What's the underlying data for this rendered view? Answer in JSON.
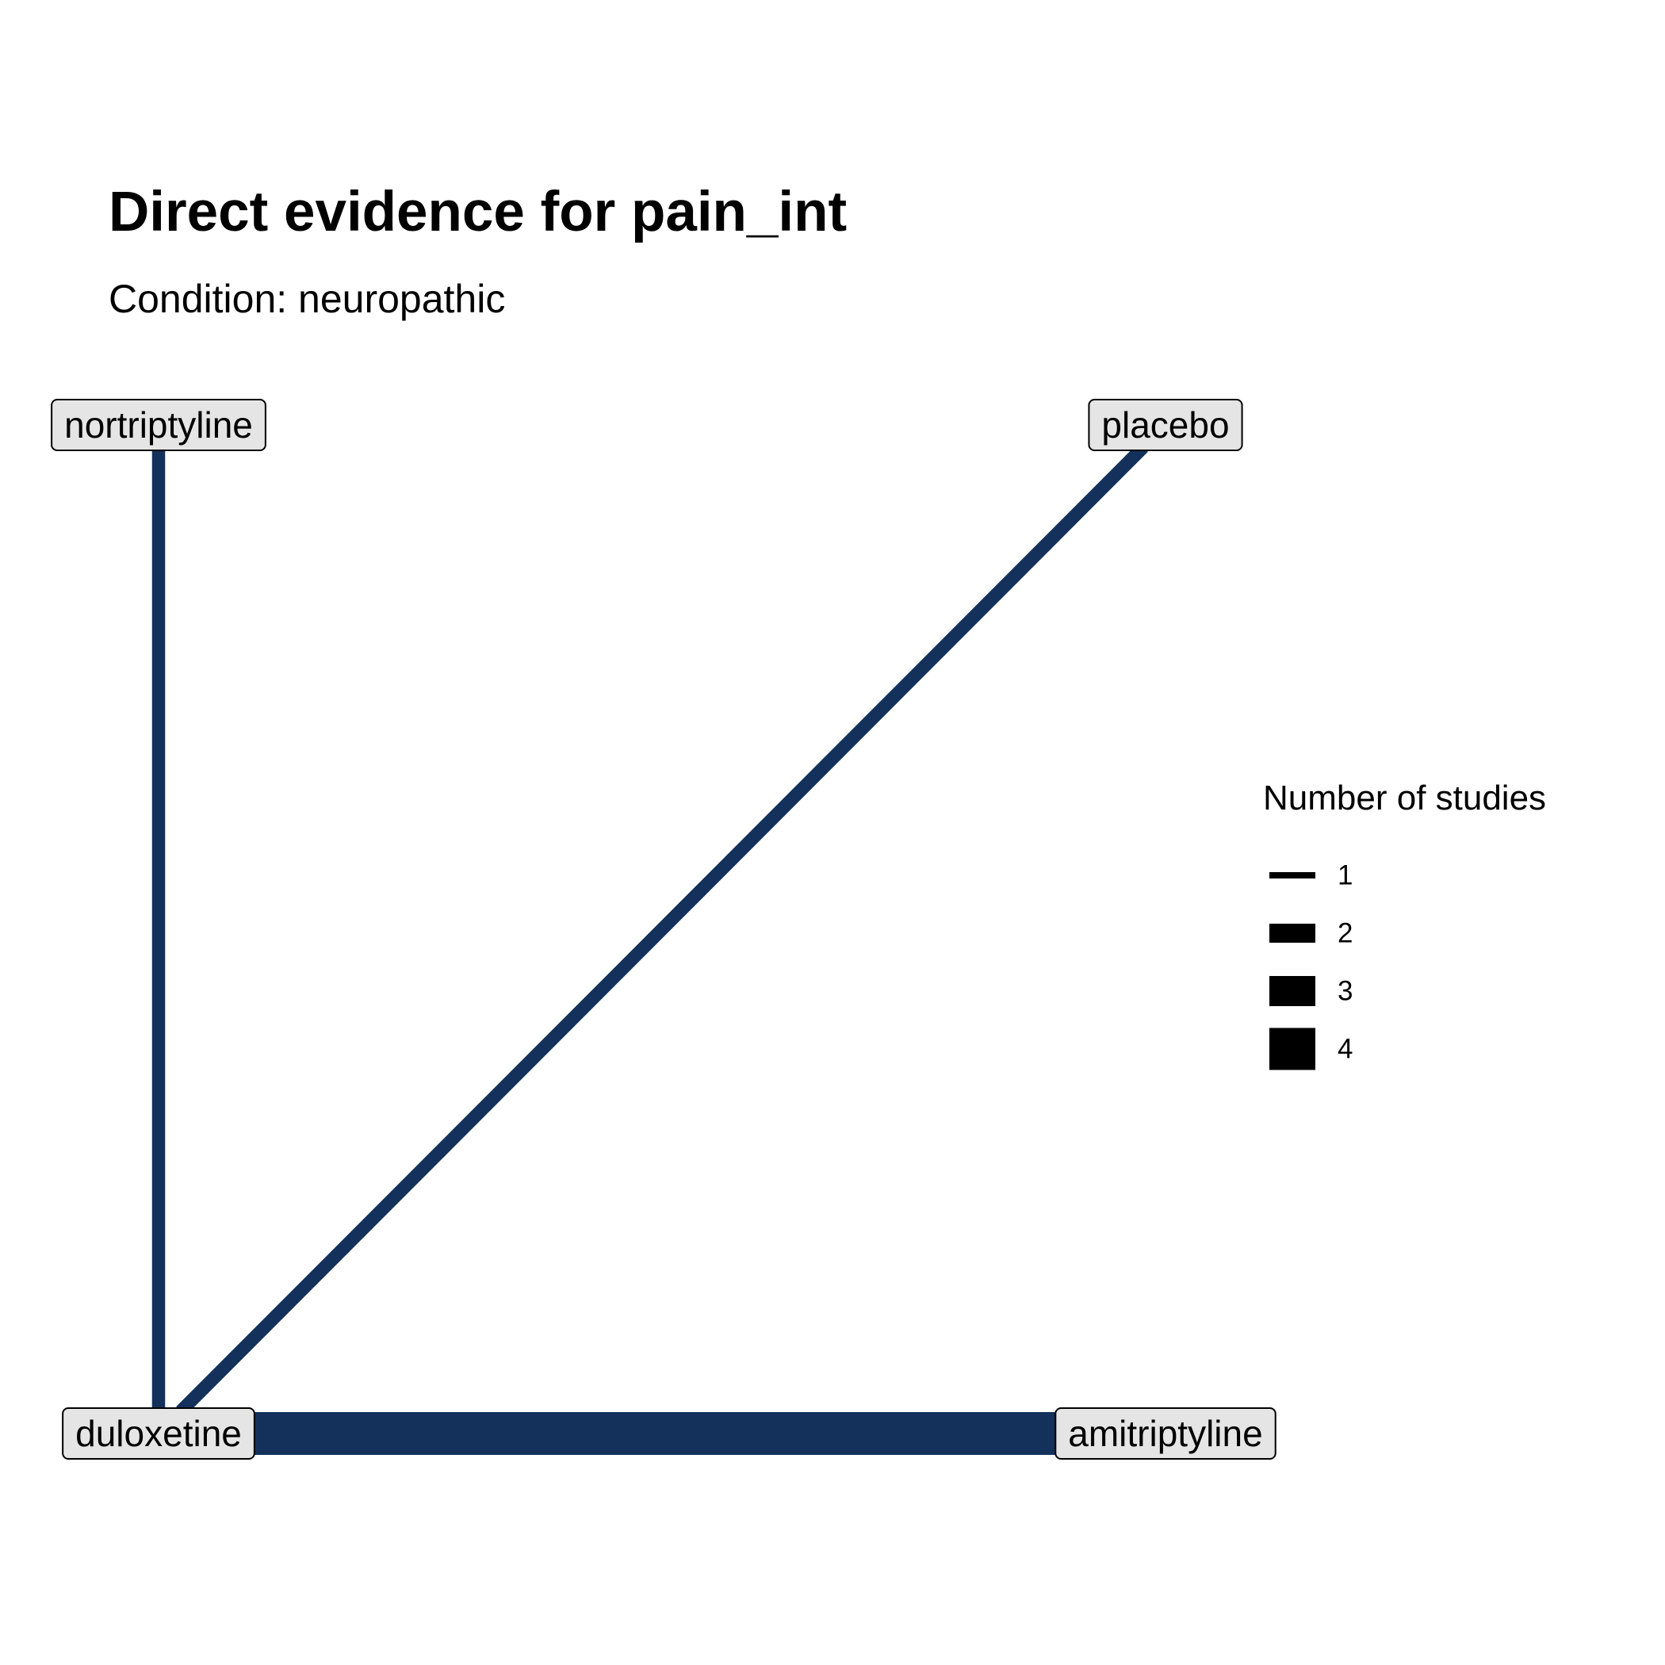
{
  "title": "Direct evidence for pain_int",
  "subtitle": "Condition: neuropathic",
  "edge_color": "#13315a",
  "nodes": [
    {
      "id": "nortriptyline",
      "label": "nortriptyline"
    },
    {
      "id": "placebo",
      "label": "placebo"
    },
    {
      "id": "duloxetine",
      "label": "duloxetine"
    },
    {
      "id": "amitriptyline",
      "label": "amitriptyline"
    }
  ],
  "edges": [
    {
      "from": "nortriptyline",
      "to": "duloxetine",
      "studies": 1
    },
    {
      "from": "placebo",
      "to": "duloxetine",
      "studies": 1
    },
    {
      "from": "duloxetine",
      "to": "amitriptyline",
      "studies": 4
    }
  ],
  "legend": {
    "title": "Number of studies",
    "items": [
      "1",
      "2",
      "3",
      "4"
    ]
  }
}
